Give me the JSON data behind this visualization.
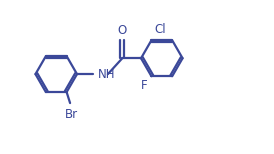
{
  "bg_color": "#ffffff",
  "line_color": "#3b4899",
  "text_color": "#3b4899",
  "line_width": 1.6,
  "font_size": 8.5,
  "figsize": [
    2.74,
    1.54
  ],
  "dpi": 100,
  "r_ring": 0.72,
  "xlim": [
    0,
    9.5
  ],
  "ylim": [
    0,
    5.2
  ]
}
